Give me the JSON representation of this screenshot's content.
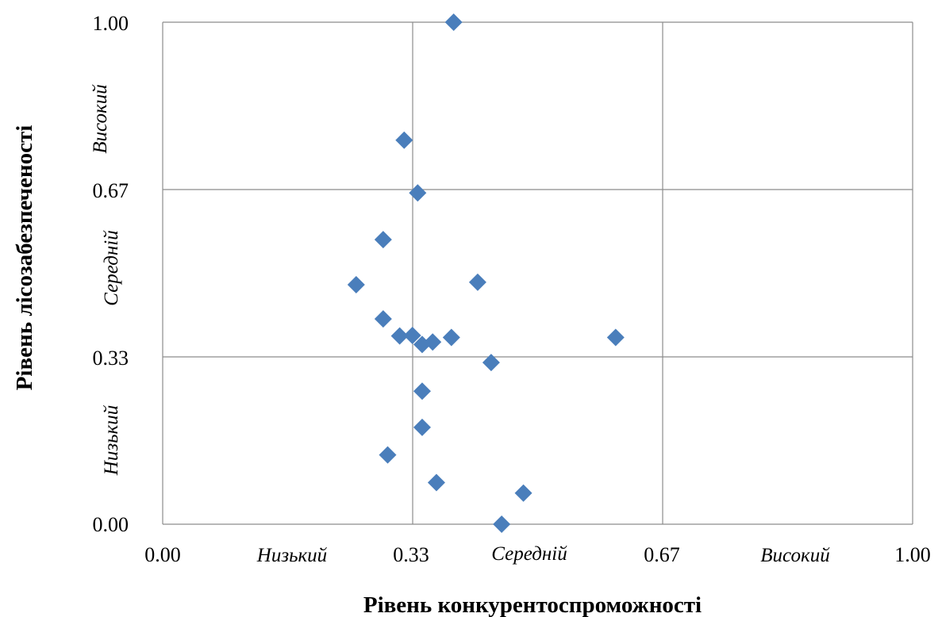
{
  "chart_data": {
    "type": "scatter",
    "xlabel": "Рівень конкурентоспроможності",
    "ylabel": "Рівень лісозабезпеченості",
    "xlim": [
      0,
      1
    ],
    "ylim": [
      0,
      1
    ],
    "x_ticks": [
      "0.00",
      "0.33",
      "0.67",
      "1.00"
    ],
    "y_ticks": [
      "0.00",
      "0.33",
      "0.67",
      "1.00"
    ],
    "grid": true,
    "legend": "none",
    "marker": "diamond",
    "marker_color": "#4a7ebb",
    "x_zones": [
      "Низький",
      "Середній",
      "Високий"
    ],
    "y_zones": [
      "Низький",
      "Середній",
      "Високий"
    ],
    "points": [
      {
        "x": 0.388,
        "y": 1.0
      },
      {
        "x": 0.322,
        "y": 0.765
      },
      {
        "x": 0.34,
        "y": 0.66
      },
      {
        "x": 0.294,
        "y": 0.567
      },
      {
        "x": 0.258,
        "y": 0.477
      },
      {
        "x": 0.42,
        "y": 0.482
      },
      {
        "x": 0.294,
        "y": 0.409
      },
      {
        "x": 0.316,
        "y": 0.375
      },
      {
        "x": 0.333,
        "y": 0.376
      },
      {
        "x": 0.346,
        "y": 0.358
      },
      {
        "x": 0.36,
        "y": 0.363
      },
      {
        "x": 0.385,
        "y": 0.372
      },
      {
        "x": 0.604,
        "y": 0.372
      },
      {
        "x": 0.438,
        "y": 0.322
      },
      {
        "x": 0.346,
        "y": 0.265
      },
      {
        "x": 0.346,
        "y": 0.193
      },
      {
        "x": 0.3,
        "y": 0.138
      },
      {
        "x": 0.365,
        "y": 0.083
      },
      {
        "x": 0.481,
        "y": 0.062
      },
      {
        "x": 0.452,
        "y": 0.0
      }
    ]
  }
}
